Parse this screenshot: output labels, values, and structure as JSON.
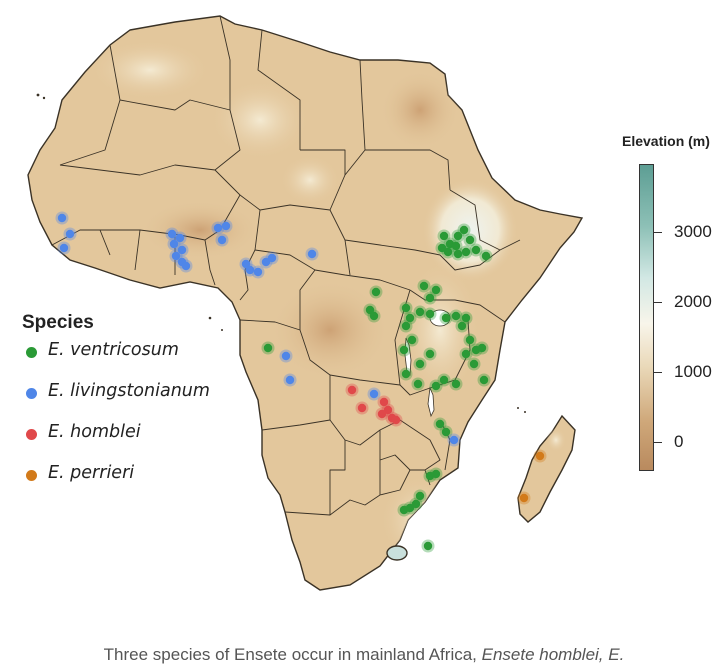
{
  "map": {
    "title": "",
    "legend": {
      "title": "Species",
      "items": [
        {
          "label": "E. ventricosum",
          "color": "#2a9a36"
        },
        {
          "label": "E. livingstonianum",
          "color": "#4f86e8"
        },
        {
          "label": "E. homblei",
          "color": "#e0484a"
        },
        {
          "label": "E. perrieri",
          "color": "#d27a1a"
        }
      ]
    },
    "elevation_scale": {
      "title": "Elevation (m)",
      "ticks": [
        {
          "value": 3000,
          "label": "3000"
        },
        {
          "value": 2000,
          "label": "2000"
        },
        {
          "value": 1000,
          "label": "1000"
        },
        {
          "value": 0,
          "label": "0"
        }
      ],
      "colors": {
        "high": "#5d9e94",
        "mid_high": "#d2e8e4",
        "mid": "#f8f5ea",
        "low": "#b98a5e"
      }
    },
    "colors": {
      "land": "#e3c79c",
      "highland": "#f4ecd6",
      "border": "#3a3226",
      "water": "#ffffff"
    }
  },
  "caption": {
    "text_plain": "Three species of Ensete occur in mainland Africa, ",
    "text_italic": "Ensete homblei, E."
  }
}
